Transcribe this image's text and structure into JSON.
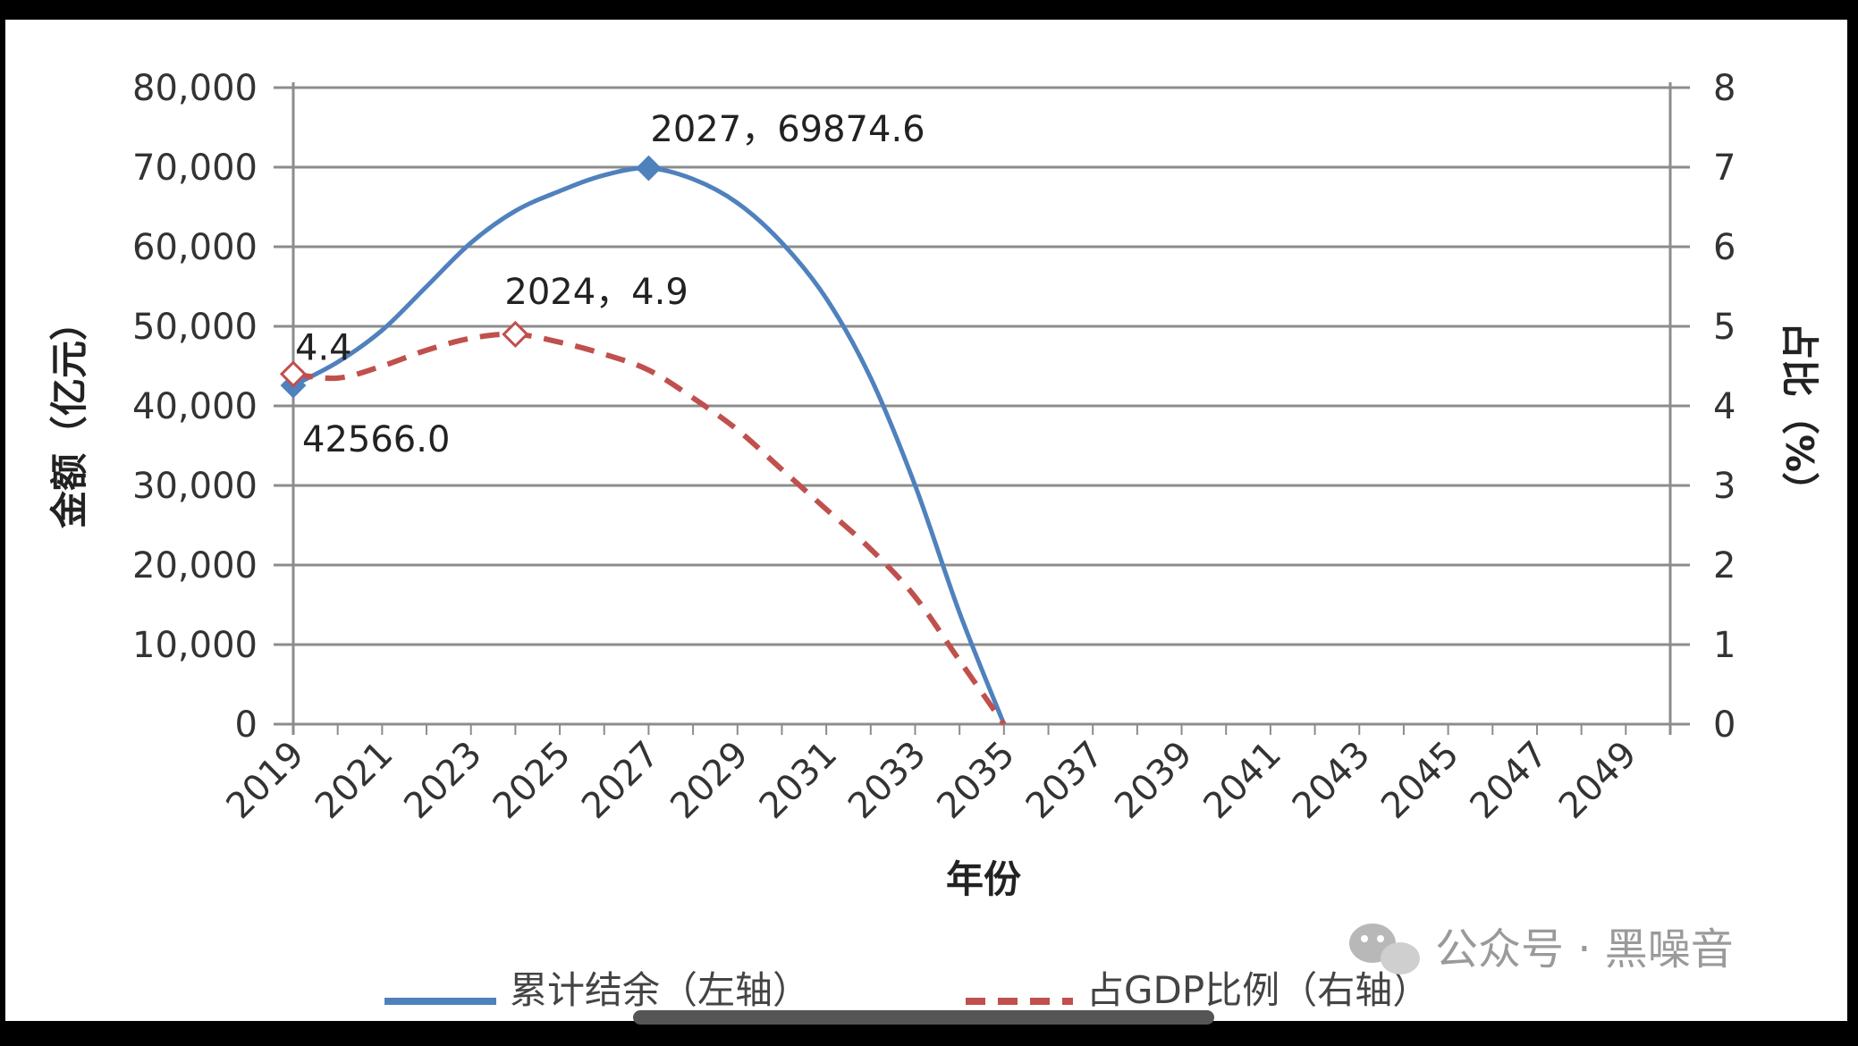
{
  "chart_data": {
    "type": "line",
    "xlabel": "年份",
    "ylabel_left": "金额（亿元）",
    "ylabel_right": "占比（%）",
    "x_ticks": [
      "2019",
      "2021",
      "2023",
      "2025",
      "2027",
      "2029",
      "2031",
      "2033",
      "2035",
      "2037",
      "2039",
      "2041",
      "2043",
      "2045",
      "2047",
      "2049"
    ],
    "xlim": [
      2019,
      2050
    ],
    "y_left_ticks": [
      "0",
      "10,000",
      "20,000",
      "30,000",
      "40,000",
      "50,000",
      "60,000",
      "70,000",
      "80,000"
    ],
    "y_left_lim": [
      0,
      80000
    ],
    "y_right_ticks": [
      "0",
      "1",
      "2",
      "3",
      "4",
      "5",
      "6",
      "7",
      "8"
    ],
    "y_right_lim": [
      0,
      8
    ],
    "grid": "horizontal",
    "legend_position": "bottom",
    "series": [
      {
        "name": "累计结余（左轴）",
        "axis": "left",
        "color": "#4f81bd",
        "style": "solid",
        "x": [
          2019,
          2020,
          2021,
          2022,
          2023,
          2024,
          2025,
          2026,
          2027,
          2028,
          2029,
          2030,
          2031,
          2032,
          2033,
          2034,
          2035
        ],
        "values": [
          42566.0,
          45500,
          49500,
          55000,
          60500,
          64500,
          67000,
          69000,
          69874.6,
          68500,
          65500,
          60500,
          53500,
          43500,
          30000,
          14000,
          0
        ]
      },
      {
        "name": "占GDP比例（右轴）",
        "axis": "right",
        "color": "#c0504d",
        "style": "dashed",
        "x": [
          2019,
          2020,
          2021,
          2022,
          2023,
          2024,
          2025,
          2026,
          2027,
          2028,
          2029,
          2030,
          2031,
          2032,
          2033,
          2034,
          2035
        ],
        "values": [
          4.4,
          4.35,
          4.5,
          4.7,
          4.85,
          4.9,
          4.8,
          4.65,
          4.45,
          4.1,
          3.7,
          3.2,
          2.7,
          2.2,
          1.6,
          0.8,
          0
        ]
      }
    ],
    "annotations": [
      {
        "series": 0,
        "x": 2019,
        "text": "42566.0"
      },
      {
        "series": 0,
        "x": 2027,
        "text": "2027，69874.6"
      },
      {
        "series": 1,
        "x": 2019,
        "text": "4.4"
      },
      {
        "series": 1,
        "x": 2024,
        "text": "2024，4.9"
      }
    ]
  },
  "watermark": {
    "icon": "wechat-icon",
    "text": "公众号 · 黑噪音"
  }
}
